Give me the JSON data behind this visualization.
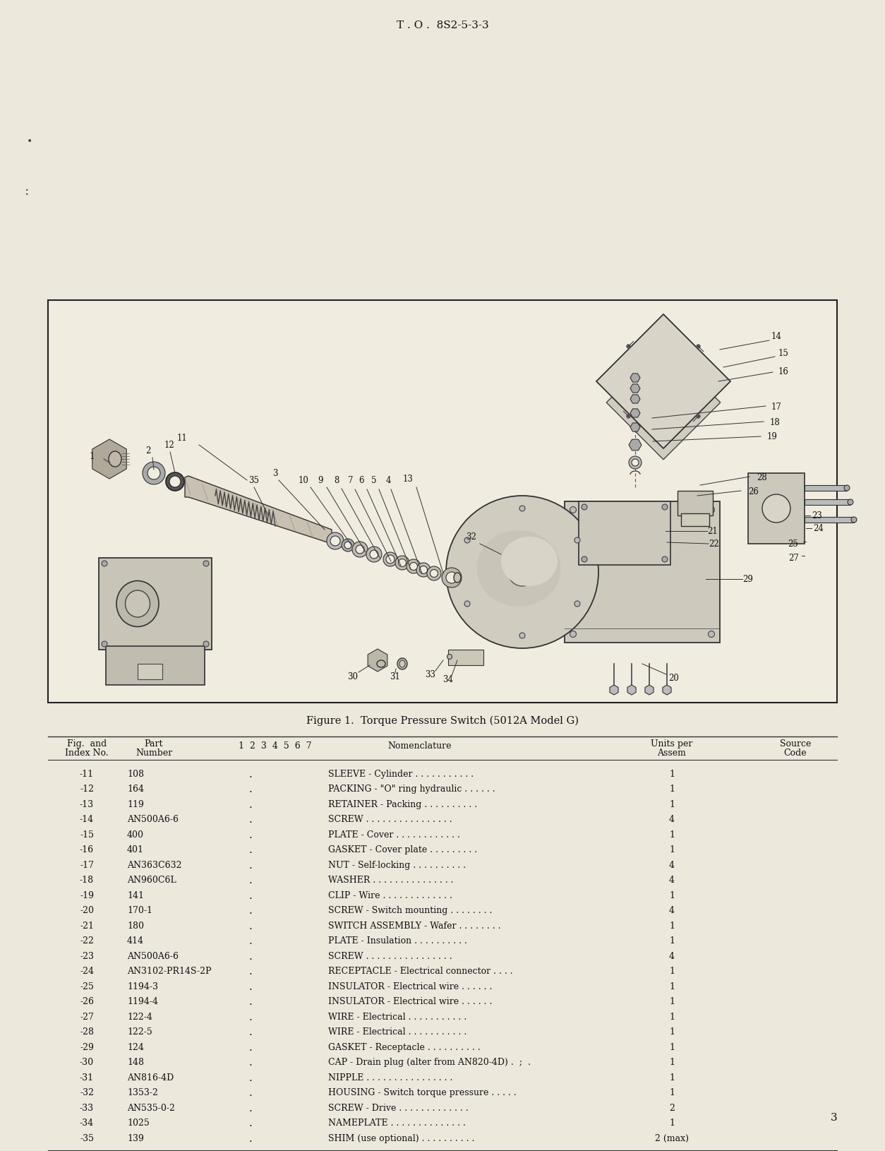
{
  "page_title": "T . O .  8S2-5-3-3",
  "figure_caption": "Figure 1.  Torque Pressure Switch (5012A Model G)",
  "page_number": "3",
  "bg_color": "#ede8dc",
  "diagram_bg": "#f8f5ee",
  "table_rows": [
    [
      "-11",
      "108",
      "SLEEVE - Cylinder . . . . . . . . . . .",
      "1",
      ""
    ],
    [
      "-12",
      "164",
      "PACKING - \"O\" ring hydraulic . . . . . .",
      "1",
      ""
    ],
    [
      "-13",
      "119",
      "RETAINER - Packing . . . . . . . . . .",
      "1",
      ""
    ],
    [
      "-14",
      "AN500A6-6",
      "SCREW . . . . . . . . . . . . . . . .",
      "4",
      ""
    ],
    [
      "-15",
      "400",
      "PLATE - Cover . . . . . . . . . . . .",
      "1",
      ""
    ],
    [
      "-16",
      "401",
      "GASKET - Cover plate . . . . . . . . .",
      "1",
      ""
    ],
    [
      "-17",
      "AN363C632",
      "NUT - Self-locking . . . . . . . . . .",
      "4",
      ""
    ],
    [
      "-18",
      "AN960C6L",
      "WASHER . . . . . . . . . . . . . . .",
      "4",
      ""
    ],
    [
      "-19",
      "141",
      "CLIP - Wire . . . . . . . . . . . . .",
      "1",
      ""
    ],
    [
      "-20",
      "170-1",
      "SCREW - Switch mounting . . . . . . . .",
      "4",
      ""
    ],
    [
      "-21",
      "180",
      "SWITCH ASSEMBLY - Wafer . . . . . . . .",
      "1",
      ""
    ],
    [
      "-22",
      "414",
      "PLATE - Insulation . . . . . . . . . .",
      "1",
      ""
    ],
    [
      "-23",
      "AN500A6-6",
      "SCREW . . . . . . . . . . . . . . . .",
      "4",
      ""
    ],
    [
      "-24",
      "AN3102-PR14S-2P",
      "RECEPTACLE - Electrical connector . . . .",
      "1",
      ""
    ],
    [
      "-25",
      "1194-3",
      "INSULATOR - Electrical wire . . . . . .",
      "1",
      ""
    ],
    [
      "-26",
      "1194-4",
      "INSULATOR - Electrical wire . . . . . .",
      "1",
      ""
    ],
    [
      "-27",
      "122-4",
      "WIRE - Electrical . . . . . . . . . . .",
      "1",
      ""
    ],
    [
      "-28",
      "122-5",
      "WIRE - Electrical . . . . . . . . . . .",
      "1",
      ""
    ],
    [
      "-29",
      "124",
      "GASKET - Receptacle . . . . . . . . . .",
      "1",
      ""
    ],
    [
      "-30",
      "148",
      "CAP - Drain plug (alter from AN820-4D) .  ;  .",
      "1",
      ""
    ],
    [
      "-31",
      "AN816-4D",
      "NIPPLE . . . . . . . . . . . . . . . .",
      "1",
      ""
    ],
    [
      "-32",
      "1353-2",
      "HOUSING - Switch torque pressure . . . . .",
      "1",
      ""
    ],
    [
      "-33",
      "AN535-0-2",
      "SCREW - Drive . . . . . . . . . . . . .",
      "2",
      ""
    ],
    [
      "-34",
      "1025",
      "NAMEPLATE . . . . . . . . . . . . . .",
      "1",
      ""
    ],
    [
      "-35",
      "139",
      "SHIM (use optional) . . . . . . . . . .",
      "2 (max)",
      ""
    ]
  ]
}
